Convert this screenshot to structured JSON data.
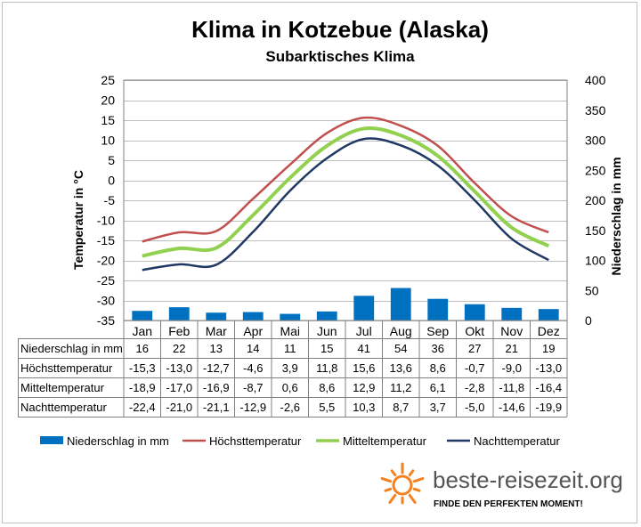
{
  "chart_data": {
    "type": "bar+line",
    "title": "Klima in Kotzebue (Alaska)",
    "subtitle": "Subarktisches Klima",
    "ylabel_left": "Temperatur in °C",
    "ylabel_right": "Niederschlag in mm",
    "ylim_left": [
      -35,
      25
    ],
    "ylim_right": [
      0,
      400
    ],
    "yticks_left": [
      25,
      20,
      15,
      10,
      5,
      0,
      -5,
      -10,
      -15,
      -20,
      -25,
      -30,
      -35
    ],
    "yticks_right": [
      400,
      350,
      300,
      250,
      200,
      150,
      100,
      50,
      0
    ],
    "grid": true,
    "legend_position": "bottom",
    "categories": [
      "Jan",
      "Feb",
      "Mar",
      "Apr",
      "Mai",
      "Jun",
      "Jul",
      "Aug",
      "Sep",
      "Okt",
      "Nov",
      "Dez"
    ],
    "series": [
      {
        "name": "Niederschlag in mm",
        "kind": "bar",
        "axis": "right",
        "color": "#0070c0",
        "values": [
          16,
          22,
          13,
          14,
          11,
          15,
          41,
          54,
          36,
          27,
          21,
          19
        ],
        "display": [
          "16",
          "22",
          "13",
          "14",
          "11",
          "15",
          "41",
          "54",
          "36",
          "27",
          "21",
          "19"
        ]
      },
      {
        "name": "Höchsttemperatur",
        "kind": "line",
        "axis": "left",
        "color": "#c0504d",
        "values": [
          -15.3,
          -13.0,
          -12.7,
          -4.6,
          3.9,
          11.8,
          15.6,
          13.6,
          8.6,
          -0.7,
          -9.0,
          -13.0
        ],
        "display": [
          "-15,3",
          "-13,0",
          "-12,7",
          "-4,6",
          "3,9",
          "11,8",
          "15,6",
          "13,6",
          "8,6",
          "-0,7",
          "-9,0",
          "-13,0"
        ]
      },
      {
        "name": "Mitteltemperatur",
        "kind": "line",
        "axis": "left",
        "color": "#92d050",
        "values": [
          -18.9,
          -17.0,
          -16.9,
          -8.7,
          0.6,
          8.6,
          12.9,
          11.2,
          6.1,
          -2.8,
          -11.8,
          -16.4
        ],
        "display": [
          "-18,9",
          "-17,0",
          "-16,9",
          "-8,7",
          "0,6",
          "8,6",
          "12,9",
          "11,2",
          "6,1",
          "-2,8",
          "-11,8",
          "-16,4"
        ]
      },
      {
        "name": "Nachttemperatur",
        "kind": "line",
        "axis": "left",
        "color": "#1f3864",
        "values": [
          -22.4,
          -21.0,
          -21.1,
          -12.9,
          -2.6,
          5.5,
          10.3,
          8.7,
          3.7,
          -5.0,
          -14.6,
          -19.9
        ],
        "display": [
          "-22,4",
          "-21,0",
          "-21,1",
          "-12,9",
          "-2,6",
          "5,5",
          "10,3",
          "8,7",
          "3,7",
          "-5,0",
          "-14,6",
          "-19,9"
        ]
      }
    ]
  },
  "logo": {
    "text": "beste-reisezeit.org",
    "tagline": "FINDE DEN PERFEKTEN MOMENT!",
    "icon": "sun-icon",
    "color": "#f58220"
  }
}
